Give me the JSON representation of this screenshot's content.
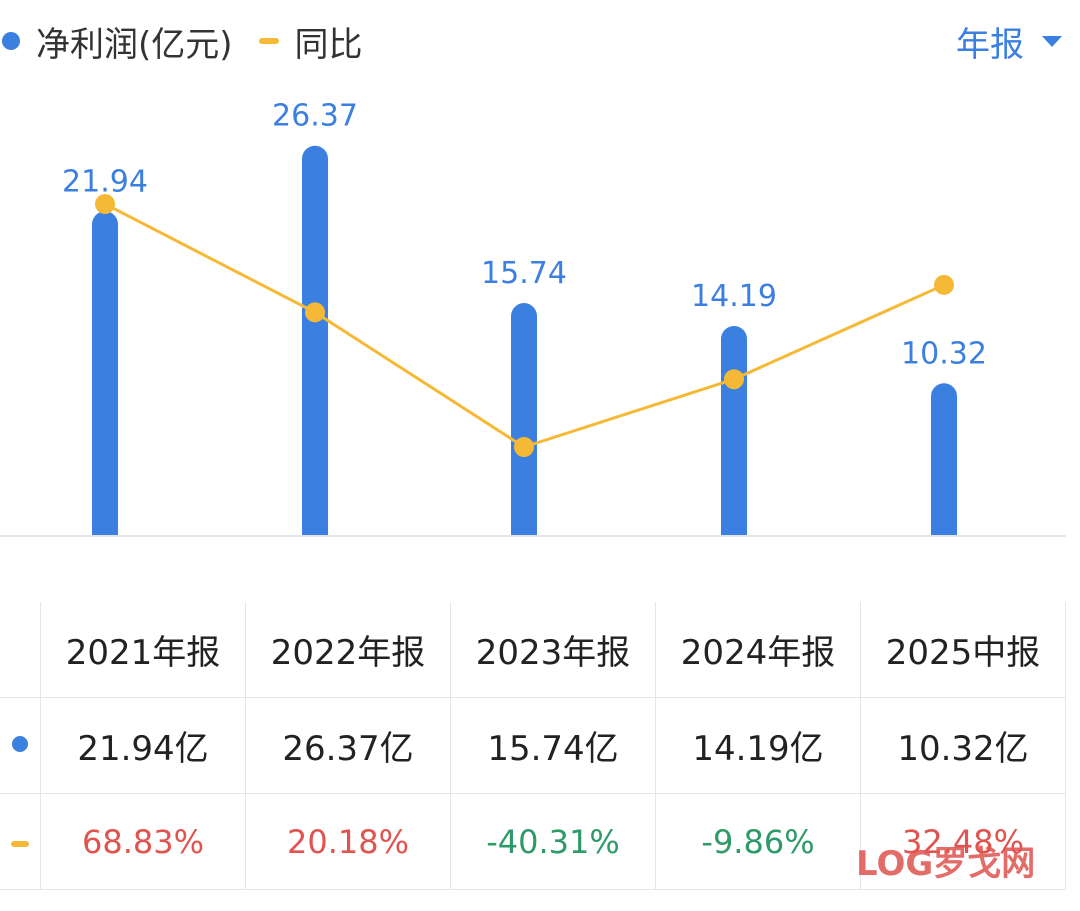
{
  "legend": {
    "profit_label": "净利润(亿元)",
    "yoy_label": "同比"
  },
  "period_selector": {
    "label": "年报"
  },
  "colors": {
    "bar": "#3b7fe0",
    "line": "#f5b936",
    "positive": "#e0534e",
    "negative": "#2e9a68",
    "label": "#3b7fe0"
  },
  "chart_data": {
    "type": "bar",
    "categories": [
      "2021年报",
      "2022年报",
      "2023年报",
      "2024年报",
      "2025中报"
    ],
    "series": [
      {
        "name": "净利润(亿元)",
        "type": "bar",
        "values": [
          21.94,
          26.37,
          15.74,
          14.19,
          10.32
        ]
      },
      {
        "name": "同比",
        "type": "line",
        "values": [
          68.83,
          20.18,
          -40.31,
          -9.86,
          32.48
        ]
      }
    ],
    "grid": false
  },
  "table": {
    "headers": [
      "2021年报",
      "2022年报",
      "2023年报",
      "2024年报",
      "2025中报"
    ],
    "profit": [
      "21.94亿",
      "26.37亿",
      "15.74亿",
      "14.19亿",
      "10.32亿"
    ],
    "yoy": [
      "68.83%",
      "20.18%",
      "-40.31%",
      "-9.86%",
      "32.48%"
    ]
  },
  "watermark": {
    "text": "LOG罗戈网"
  }
}
